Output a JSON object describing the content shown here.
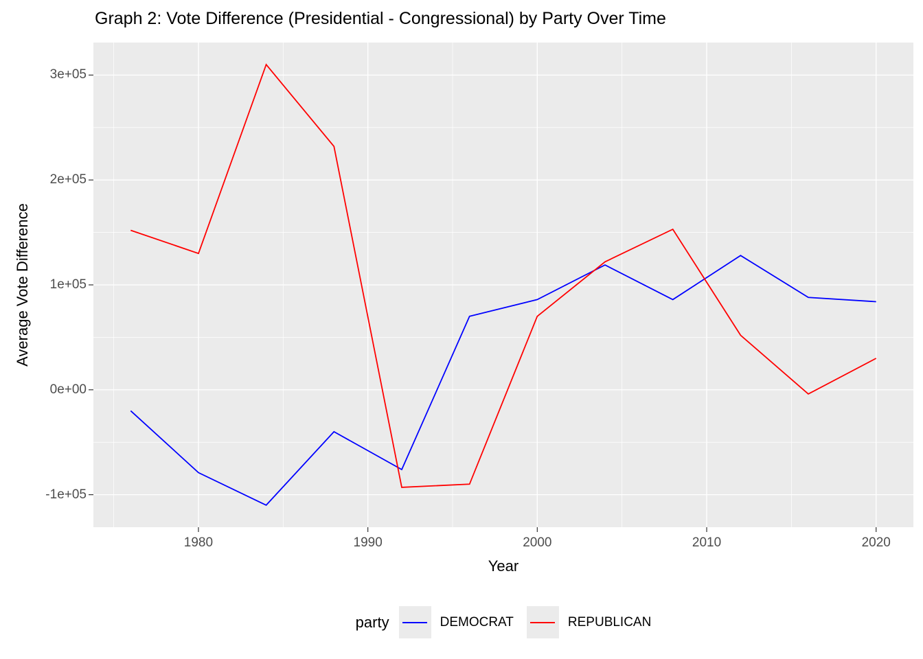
{
  "title": "Graph 2: Vote Difference (Presidential - Congressional) by Party Over Time",
  "axes": {
    "x": {
      "title": "Year",
      "tick_labels": [
        "1980",
        "1990",
        "2000",
        "2010",
        "2020"
      ]
    },
    "y": {
      "title": "Average Vote Difference",
      "tick_labels": [
        "3e+05",
        "2e+05",
        "1e+05",
        "0e+00",
        "-1e+05"
      ]
    }
  },
  "legend": {
    "title": "party",
    "entries": [
      {
        "label": "DEMOCRAT",
        "color": "#0000FF"
      },
      {
        "label": "REPUBLICAN",
        "color": "#FF0000"
      }
    ],
    "key_fill": "#EBEBEB"
  },
  "colors": {
    "panel_background": "#EBEBEB",
    "gridline": "#FFFFFF",
    "tick_label": "#4D4D4D",
    "tick_mark": "#333333",
    "title_text": "#000000"
  },
  "chart_data": {
    "type": "line",
    "title": "Graph 2: Vote Difference (Presidential - Congressional) by Party Over Time",
    "xlabel": "Year",
    "ylabel": "Average Vote Difference",
    "x": [
      1976,
      1980,
      1984,
      1988,
      1992,
      1996,
      2000,
      2004,
      2008,
      2012,
      2016,
      2020
    ],
    "series": [
      {
        "name": "DEMOCRAT",
        "color": "#0000FF",
        "values": [
          -20000,
          -79000,
          -110000,
          -40000,
          -76000,
          70000,
          86000,
          119000,
          86000,
          128000,
          88000,
          84000
        ]
      },
      {
        "name": "REPUBLICAN",
        "color": "#FF0000",
        "values": [
          152000,
          130000,
          310000,
          232000,
          -93000,
          -90000,
          70000,
          122000,
          153000,
          52000,
          -4000,
          30000
        ]
      }
    ],
    "xlim": [
      1973.8,
      2022.2
    ],
    "ylim": [
      -131000,
      331000
    ],
    "x_major_ticks": [
      1980,
      1990,
      2000,
      2010,
      2020
    ],
    "x_minor_ticks": [
      1975,
      1985,
      1995,
      2005,
      2015
    ],
    "y_major_ticks": [
      300000,
      200000,
      100000,
      0,
      -100000
    ],
    "y_minor_ticks": [
      250000,
      150000,
      50000,
      -50000
    ],
    "grid": true,
    "legend_position": "bottom"
  }
}
